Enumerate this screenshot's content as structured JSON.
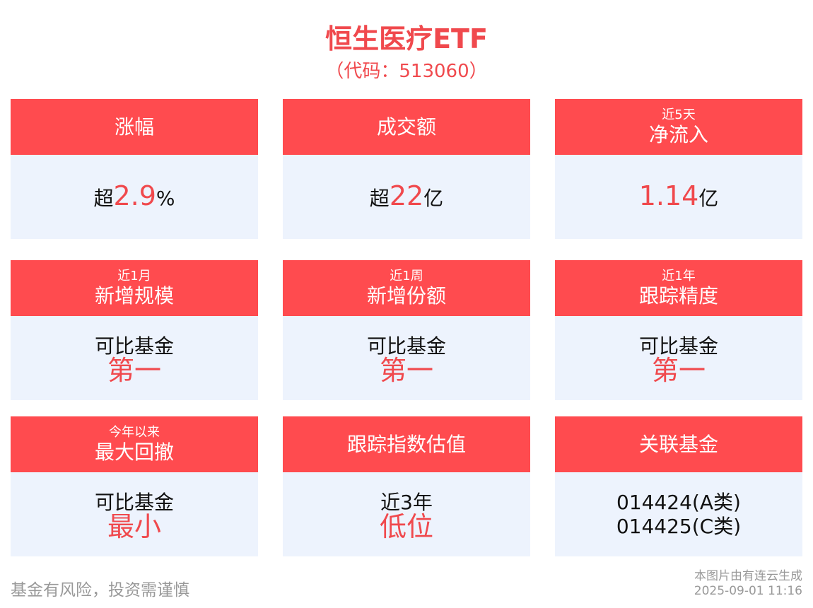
{
  "title": "恒生医疗ETF",
  "code": "（代码：513060）",
  "cards": [
    {
      "sub": "",
      "label": "涨幅",
      "pre": "超",
      "value": "2.9",
      "post": "%"
    },
    {
      "sub": "",
      "label": "成交额",
      "pre": "超",
      "value": "22",
      "post": "亿"
    },
    {
      "sub": "近5天",
      "label": "净流入",
      "pre": "",
      "value": "1.14",
      "post": "亿"
    },
    {
      "sub": "近1月",
      "label": "新增规模",
      "line1": "可比基金",
      "line2": "第一"
    },
    {
      "sub": "近1周",
      "label": "新增份额",
      "line1": "可比基金",
      "line2": "第一"
    },
    {
      "sub": "近1年",
      "label": "跟踪精度",
      "line1": "可比基金",
      "line2": "第一"
    },
    {
      "sub": "今年以来",
      "label": "最大回撤",
      "line1": "可比基金",
      "line2": "最小"
    },
    {
      "sub": "",
      "label": "跟踪指数估值",
      "line1": "近3年",
      "line2": "低位"
    },
    {
      "sub": "",
      "label": "关联基金",
      "line1": "014424(A类)",
      "line2": "014425(C类)"
    }
  ],
  "footer": {
    "disclaimer": "基金有风险，投资需谨慎",
    "generator": "本图片由有连云生成",
    "timestamp": "2025-09-01 11:16"
  },
  "colors": {
    "accent": "#ff4b4f",
    "card_bg": "#edf3fd"
  }
}
